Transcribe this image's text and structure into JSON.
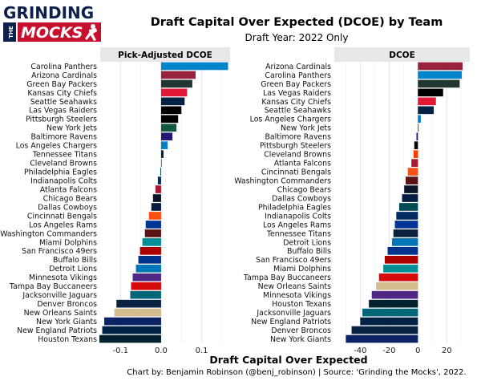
{
  "header": {
    "title": "Draft Capital Over Expected (DCOE) by Team",
    "subtitle": "Draft Year: 2022 Only",
    "logo_top": "GRINDING",
    "logo_the": "THE",
    "logo_bottom": "MOCKS"
  },
  "footer": {
    "caption": "Chart by: Benjamin Robinson (@benj_robinson) | Source: 'Grinding the Mocks', 2022."
  },
  "chart_data": [
    {
      "type": "bar",
      "orientation": "horizontal",
      "panel_title": "Pick-Adjusted DCOE",
      "xlabel": "Draft Capital Over Expected",
      "xlim": [
        -0.15,
        0.17
      ],
      "xticks": [
        -0.1,
        0.0,
        0.1
      ],
      "xtick_labels": [
        "-0.1",
        "0.0",
        "0.1"
      ],
      "grid": true,
      "categories": [
        "Carolina Panthers",
        "Arizona Cardinals",
        "Green Bay Packers",
        "Kansas City Chiefs",
        "Seattle Seahawks",
        "Las Vegas Raiders",
        "Pittsburgh Steelers",
        "New York Jets",
        "Baltimore Ravens",
        "Los Angeles Chargers",
        "Tennessee Titans",
        "Cleveland Browns",
        "Philadelphia Eagles",
        "Indianapolis Colts",
        "Atlanta Falcons",
        "Chicago Bears",
        "Dallas Cowboys",
        "Cincinnati Bengals",
        "Los Angeles Rams",
        "Washington Commanders",
        "Miami Dolphins",
        "San Francisco 49ers",
        "Buffalo Bills",
        "Detroit Lions",
        "Minnesota Vikings",
        "Tampa Bay Buccaneers",
        "Jacksonville Jaguars",
        "Denver Broncos",
        "New Orleans Saints",
        "New York Giants",
        "New England Patriots",
        "Houston Texans"
      ],
      "values": [
        0.165,
        0.085,
        0.077,
        0.064,
        0.058,
        0.05,
        0.042,
        0.038,
        0.028,
        0.016,
        0.006,
        0.002,
        -0.002,
        -0.008,
        -0.014,
        -0.02,
        -0.024,
        -0.03,
        -0.038,
        -0.04,
        -0.046,
        -0.052,
        -0.056,
        -0.062,
        -0.07,
        -0.074,
        -0.076,
        -0.11,
        -0.115,
        -0.14,
        -0.145,
        -0.152
      ],
      "colors": [
        "#0085CA",
        "#97233F",
        "#203731",
        "#E31837",
        "#002244",
        "#000000",
        "#000000",
        "#125740",
        "#241773",
        "#0080C6",
        "#0C2340",
        "#FF3C00",
        "#004C54",
        "#002C5F",
        "#A71930",
        "#0B162A",
        "#041E42",
        "#FB4F14",
        "#003594",
        "#5A1414",
        "#008E97",
        "#AA0000",
        "#00338D",
        "#0076B6",
        "#4F2683",
        "#D50A0A",
        "#006778",
        "#0A2343",
        "#D3BC8D",
        "#0B2265",
        "#002244",
        "#03202F"
      ]
    },
    {
      "type": "bar",
      "orientation": "horizontal",
      "panel_title": "DCOE",
      "xlabel": "Draft Capital Over Expected",
      "xlim": [
        -58,
        36
      ],
      "xticks": [
        -40,
        -20,
        0,
        20
      ],
      "xtick_labels": [
        "-40",
        "-20",
        "0",
        "20"
      ],
      "grid": true,
      "categories": [
        "Arizona Cardinals",
        "Carolina Panthers",
        "Green Bay Packers",
        "Las Vegas Raiders",
        "Kansas City Chiefs",
        "Seattle Seahawks",
        "Los Angeles Chargers",
        "New York Jets",
        "Baltimore Ravens",
        "Pittsburgh Steelers",
        "Cleveland Browns",
        "Atlanta Falcons",
        "Cincinnati Bengals",
        "Washington Commanders",
        "Chicago Bears",
        "Dallas Cowboys",
        "Philadelphia Eagles",
        "Indianapolis Colts",
        "Los Angeles Rams",
        "Tennessee Titans",
        "Detroit Lions",
        "Buffalo Bills",
        "San Francisco 49ers",
        "Miami Dolphins",
        "Tampa Bay Buccaneers",
        "New Orleans Saints",
        "Minnesota Vikings",
        "Houston Texans",
        "Jacksonville Jaguars",
        "New England Patriots",
        "Denver Broncos",
        "New York Giants"
      ],
      "values": [
        31,
        30.5,
        29,
        17.5,
        12.5,
        11,
        2,
        0.5,
        -1,
        -2.5,
        -3,
        -4.5,
        -7,
        -8.5,
        -9.5,
        -11,
        -13,
        -15,
        -16,
        -17,
        -18,
        -21,
        -23,
        -24,
        -27,
        -29,
        -32,
        -34,
        -38.5,
        -40,
        -46,
        -50
      ],
      "colors": [
        "#97233F",
        "#0085CA",
        "#203731",
        "#000000",
        "#E31837",
        "#002244",
        "#0080C6",
        "#125740",
        "#241773",
        "#000000",
        "#FF3C00",
        "#A71930",
        "#FB4F14",
        "#5A1414",
        "#0B162A",
        "#041E42",
        "#004C54",
        "#002C5F",
        "#003594",
        "#0C2340",
        "#0076B6",
        "#00338D",
        "#AA0000",
        "#008E97",
        "#D50A0A",
        "#D3BC8D",
        "#4F2683",
        "#03202F",
        "#006778",
        "#002244",
        "#0A2343",
        "#0B2265"
      ]
    }
  ]
}
